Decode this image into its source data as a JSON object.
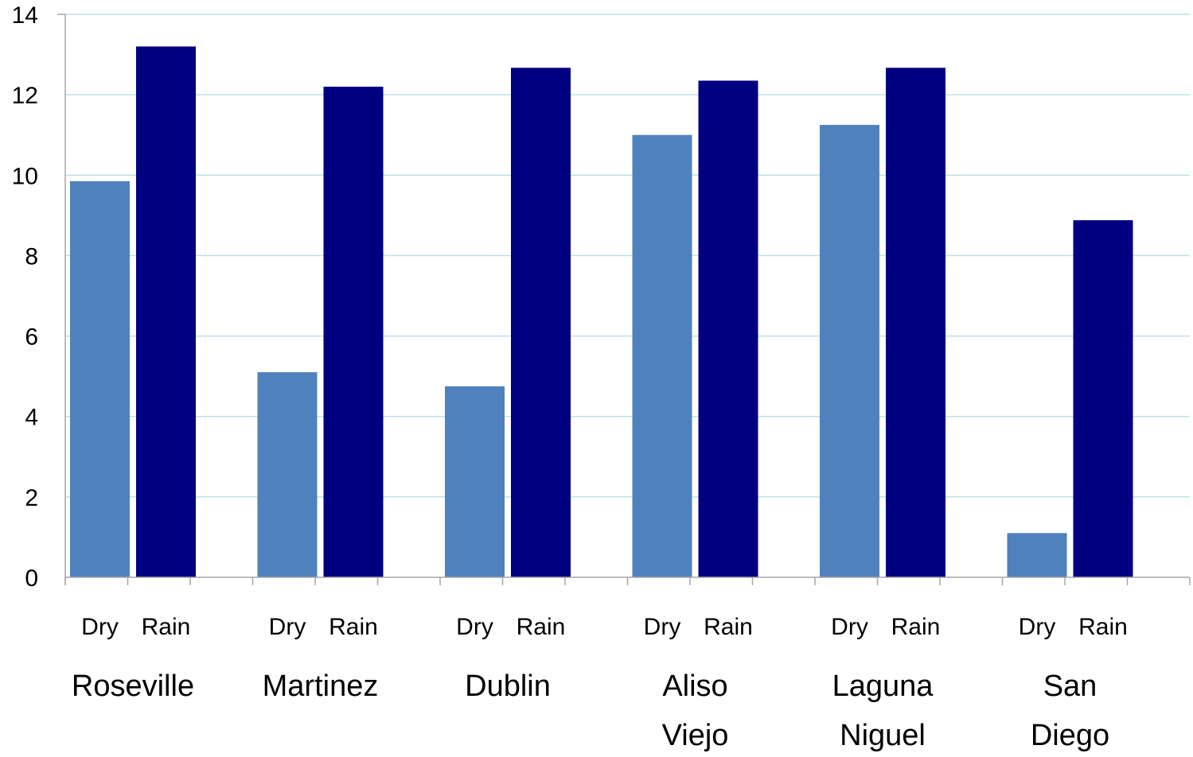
{
  "chart_data": {
    "type": "bar",
    "title": "",
    "xlabel": "",
    "ylabel": "",
    "ylim": [
      0,
      14
    ],
    "yticks": [
      0,
      2,
      4,
      6,
      8,
      10,
      12,
      14
    ],
    "grid": true,
    "legend": "none",
    "categories": [
      {
        "lines": [
          "Roseville"
        ]
      },
      {
        "lines": [
          "Martinez"
        ]
      },
      {
        "lines": [
          "Dublin"
        ]
      },
      {
        "lines": [
          "Aliso",
          "Viejo"
        ]
      },
      {
        "lines": [
          "Laguna",
          "Niguel"
        ]
      },
      {
        "lines": [
          "San",
          "Diego"
        ]
      }
    ],
    "bar_labels": [
      "Dry",
      "Rain"
    ],
    "series": [
      {
        "label": "Dry",
        "color": "#4f81bd",
        "values": [
          9.85,
          5.1,
          4.75,
          11.0,
          11.25,
          1.1
        ]
      },
      {
        "label": "Rain",
        "color": "#000080",
        "values": [
          13.2,
          12.2,
          12.67,
          12.35,
          12.67,
          8.88
        ]
      }
    ],
    "colors": {
      "grid": "#bfe0ea",
      "axis": "#a6a6a6"
    }
  }
}
